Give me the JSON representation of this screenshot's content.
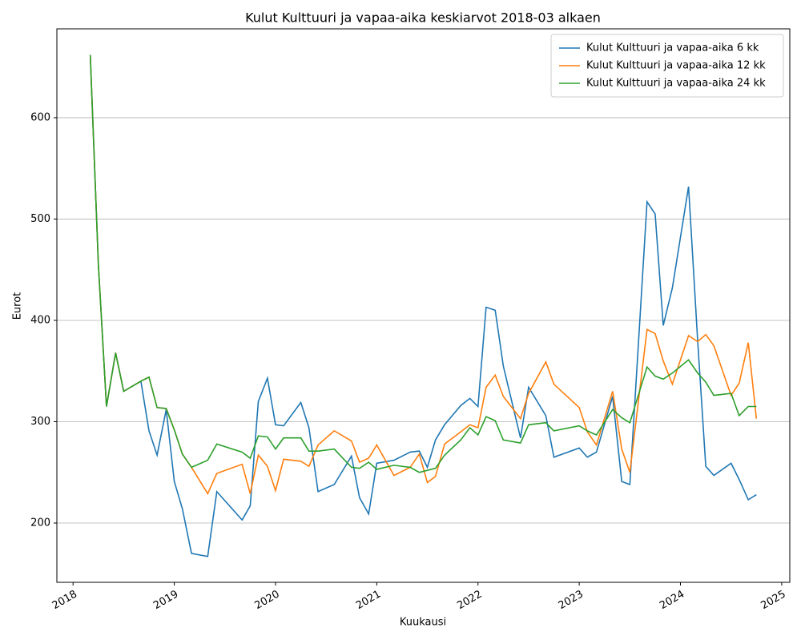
{
  "chart_data": {
    "type": "line",
    "title": "Kulut Kulttuuri ja vapaa-aika keskiarvot 2018-03 alkaen",
    "xlabel": "Kuukausi",
    "ylabel": "Eurot",
    "x": [
      2018.17,
      2018.25,
      2018.33,
      2018.42,
      2018.5,
      2018.67,
      2018.75,
      2018.83,
      2018.92,
      2019,
      2019.08,
      2019.17,
      2019.33,
      2019.42,
      2019.67,
      2019.75,
      2019.83,
      2019.92,
      2020,
      2020.08,
      2020.25,
      2020.33,
      2020.42,
      2020.58,
      2020.75,
      2020.83,
      2020.92,
      2021,
      2021.17,
      2021.33,
      2021.42,
      2021.5,
      2021.58,
      2021.67,
      2021.83,
      2021.92,
      2022,
      2022.08,
      2022.17,
      2022.25,
      2022.42,
      2022.5,
      2022.67,
      2022.75,
      2023,
      2023.08,
      2023.17,
      2023.33,
      2023.42,
      2023.5,
      2023.67,
      2023.75,
      2023.83,
      2023.92,
      2024.08,
      2024.17,
      2024.25,
      2024.33,
      2024.5,
      2024.58,
      2024.67,
      2024.75
    ],
    "series": [
      {
        "name": "Kulut Kulttuuri ja vapaa-aika 6 kk",
        "color": "#1f77b4",
        "values": [
          662,
          455,
          315,
          368,
          330,
          340,
          291,
          267,
          312,
          241,
          214,
          170,
          167,
          231,
          203,
          217,
          320,
          343,
          297,
          296,
          319,
          294,
          231,
          238,
          266,
          225,
          209,
          259,
          262,
          270,
          271,
          255,
          282,
          297,
          316,
          323,
          315,
          413,
          410,
          355,
          284,
          334,
          306,
          265,
          274,
          265,
          270,
          325,
          241,
          238,
          517,
          505,
          395,
          432,
          532,
          380,
          256,
          247,
          259,
          243,
          223,
          228
        ]
      },
      {
        "name": "Kulut Kulttuuri ja vapaa-aika 12 kk",
        "color": "#ff7f0e",
        "values": [
          662,
          455,
          315,
          368,
          330,
          340,
          344,
          314,
          313,
          292,
          268,
          255,
          229,
          249,
          258,
          229,
          267,
          256,
          232,
          263,
          261,
          256,
          277,
          291,
          281,
          260,
          264,
          277,
          247,
          255,
          268,
          240,
          246,
          278,
          290,
          297,
          294,
          334,
          346,
          325,
          303,
          328,
          359,
          337,
          314,
          290,
          277,
          330,
          273,
          250,
          391,
          387,
          360,
          337,
          385,
          379,
          386,
          375,
          326,
          338,
          378,
          303
        ]
      },
      {
        "name": "Kulut Kulttuuri ja vapaa-aika 24 kk",
        "color": "#2ca02c",
        "values": [
          662,
          455,
          315,
          368,
          330,
          340,
          344,
          314,
          313,
          292,
          268,
          255,
          262,
          278,
          270,
          264,
          286,
          285,
          273,
          284,
          284,
          271,
          271,
          273,
          255,
          254,
          260,
          253,
          257,
          255,
          250,
          252,
          254,
          267,
          282,
          294,
          287,
          305,
          301,
          282,
          279,
          297,
          299,
          291,
          296,
          291,
          287,
          312,
          304,
          299,
          354,
          345,
          342,
          348,
          361,
          348,
          339,
          326,
          328,
          306,
          315,
          315
        ]
      }
    ],
    "xlim": [
      2017.84,
      2025.08
    ],
    "xticks": [
      2018,
      2019,
      2020,
      2021,
      2022,
      2023,
      2024,
      2025
    ],
    "ylim": [
      141.5,
      687.7
    ],
    "yticks": [
      200,
      300,
      400,
      500,
      600
    ],
    "grid": "y",
    "legend": "upper right"
  }
}
